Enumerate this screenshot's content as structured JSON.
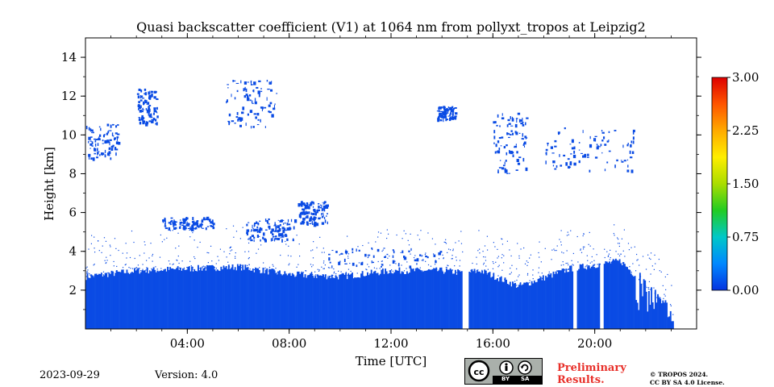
{
  "chart_data": {
    "type": "heatmap",
    "title": "Quasi backscatter coefficient (V1) at 1064 nm from pollyxt_tropos at Leipzig2",
    "xlabel": "Time [UTC]",
    "ylabel": "Height [km]",
    "xlim_hours": [
      0,
      24
    ],
    "ylim_km": [
      0,
      15
    ],
    "x_ticks": [
      {
        "hour": 4,
        "label": "04:00"
      },
      {
        "hour": 8,
        "label": "08:00"
      },
      {
        "hour": 12,
        "label": "12:00"
      },
      {
        "hour": 16,
        "label": "16:00"
      },
      {
        "hour": 20,
        "label": "20:00"
      }
    ],
    "y_ticks": [
      {
        "km": 2,
        "label": "2"
      },
      {
        "km": 4,
        "label": "4"
      },
      {
        "km": 6,
        "label": "6"
      },
      {
        "km": 8,
        "label": "8"
      },
      {
        "km": 10,
        "label": "10"
      },
      {
        "km": 12,
        "label": "12"
      },
      {
        "km": 14,
        "label": "14"
      }
    ],
    "colorbar": {
      "min": 0.0,
      "max": 3.0,
      "ticks": [
        {
          "value": 0.0,
          "label": "0.00"
        },
        {
          "value": 0.75,
          "label": "0.75"
        },
        {
          "value": 1.5,
          "label": "1.50"
        },
        {
          "value": 2.25,
          "label": "2.25"
        },
        {
          "value": 3.0,
          "label": "3.00"
        }
      ],
      "colormap": [
        "#0533e0",
        "#0088ff",
        "#00c8c8",
        "#22cc22",
        "#aadd00",
        "#ffee00",
        "#ffaa00",
        "#ff5500",
        "#dd0000"
      ]
    },
    "signal_color": "#0a4be4",
    "boundary_layer_top_km": [
      [
        0,
        2.7
      ],
      [
        2,
        3.0
      ],
      [
        4,
        3.1
      ],
      [
        6,
        3.2
      ],
      [
        8,
        2.8
      ],
      [
        10,
        2.7
      ],
      [
        12,
        3.0
      ],
      [
        14,
        3.0
      ],
      [
        14.8,
        2.9
      ],
      [
        15.5,
        3.0
      ],
      [
        17,
        2.2
      ],
      [
        19,
        3.1
      ],
      [
        21,
        3.5
      ],
      [
        22,
        2.2
      ],
      [
        22.5,
        1.5
      ],
      [
        23,
        1.2
      ]
    ],
    "data_end_hour": 23.1,
    "gaps_hours": [
      [
        14.8,
        15.05
      ],
      [
        19.15,
        19.3
      ],
      [
        20.2,
        20.35
      ]
    ],
    "cloud_layers": [
      {
        "name": "cirrus",
        "t0": 0.0,
        "t1": 1.3,
        "z0": 8.8,
        "z1": 10.6
      },
      {
        "name": "cirrus",
        "t0": 2.0,
        "t1": 2.8,
        "z0": 10.6,
        "z1": 12.4
      },
      {
        "name": "cirrus",
        "t0": 5.5,
        "t1": 7.5,
        "z0": 10.4,
        "z1": 12.9
      },
      {
        "name": "cirrus",
        "t0": 13.8,
        "t1": 14.5,
        "z0": 10.8,
        "z1": 11.5
      },
      {
        "name": "cirrus",
        "t0": 16.0,
        "t1": 17.3,
        "z0": 8.0,
        "z1": 11.2
      },
      {
        "name": "cirrus",
        "t0": 18.0,
        "t1": 21.5,
        "z0": 8.2,
        "z1": 10.4
      },
      {
        "name": "aerosol",
        "t0": 3.0,
        "t1": 5.0,
        "z0": 5.2,
        "z1": 5.8
      },
      {
        "name": "aerosol",
        "t0": 6.3,
        "t1": 8.2,
        "z0": 4.6,
        "z1": 5.7
      },
      {
        "name": "aerosol",
        "t0": 8.3,
        "t1": 9.5,
        "z0": 5.4,
        "z1": 6.6
      },
      {
        "name": "residual",
        "t0": 9.5,
        "t1": 14.0,
        "z0": 3.2,
        "z1": 4.2
      }
    ]
  },
  "footer": {
    "date": "2023-09-29",
    "version": "Version: 4.0",
    "preliminary": [
      "Preliminary",
      "Results."
    ],
    "copyright": [
      "© TROPOS 2024.",
      "CC BY SA 4.0 License."
    ],
    "license_badge": {
      "by": "BY",
      "sa": "SA",
      "icon": "cc-by-sa-icon"
    }
  }
}
